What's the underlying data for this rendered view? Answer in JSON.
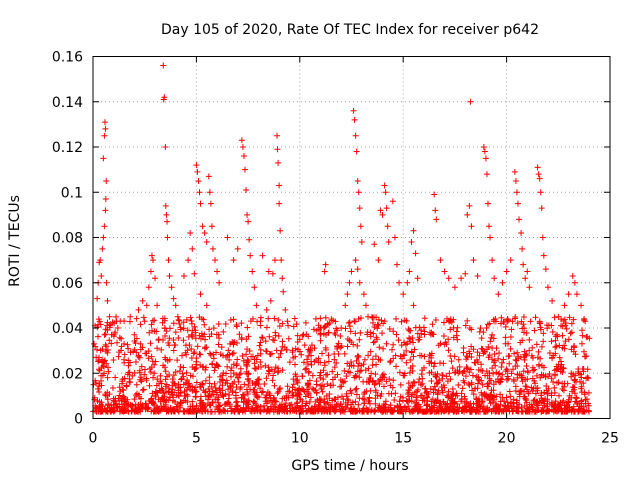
{
  "chart_data": {
    "type": "scatter",
    "title": "Day 105 of 2020, Rate Of TEC Index for receiver p642",
    "xlabel": "GPS time / hours",
    "ylabel": "ROTI / TECUs",
    "xlim": [
      0,
      25
    ],
    "ylim": [
      0,
      0.16
    ],
    "xticks": [
      0,
      5,
      10,
      15,
      20,
      25
    ],
    "yticks": [
      0,
      0.02,
      0.04,
      0.06,
      0.08,
      0.1,
      0.12,
      0.14,
      0.16
    ],
    "xtick_labels": [
      "0",
      "5",
      "10",
      "15",
      "20",
      "25"
    ],
    "ytick_labels": [
      "0",
      "0.02",
      "0.04",
      "0.06",
      "0.08",
      "0.1",
      "0.12",
      "0.14",
      "0.16"
    ],
    "grid": true,
    "marker": "+",
    "color": "#ff0000",
    "background_range": {
      "x": [
        0,
        24
      ],
      "y": [
        0.003,
        0.045
      ]
    },
    "series": [
      {
        "points": [
          [
            0.05,
            0.033
          ],
          [
            0.1,
            0.041
          ],
          [
            0.15,
            0.027
          ],
          [
            0.2,
            0.053
          ],
          [
            0.25,
            0.06
          ],
          [
            0.3,
            0.069
          ],
          [
            0.35,
            0.07
          ],
          [
            0.4,
            0.063
          ],
          [
            0.45,
            0.075
          ],
          [
            0.5,
            0.08
          ],
          [
            0.55,
            0.085
          ],
          [
            0.6,
            0.092
          ],
          [
            0.62,
            0.097
          ],
          [
            0.64,
            0.105
          ],
          [
            0.5,
            0.115
          ],
          [
            0.55,
            0.125
          ],
          [
            0.6,
            0.128
          ],
          [
            0.58,
            0.131
          ],
          [
            0.65,
            0.06
          ],
          [
            0.7,
            0.052
          ],
          [
            0.8,
            0.045
          ],
          [
            0.9,
            0.037
          ],
          [
            1.2,
            0.04
          ],
          [
            1.5,
            0.033
          ],
          [
            1.8,
            0.045
          ],
          [
            2.0,
            0.037
          ],
          [
            2.2,
            0.048
          ],
          [
            2.4,
            0.052
          ],
          [
            2.5,
            0.043
          ],
          [
            2.6,
            0.05
          ],
          [
            2.7,
            0.058
          ],
          [
            2.8,
            0.065
          ],
          [
            2.9,
            0.07
          ],
          [
            3.0,
            0.062
          ],
          [
            3.1,
            0.05
          ],
          [
            2.85,
            0.072
          ],
          [
            3.4,
            0.156
          ],
          [
            3.45,
            0.142
          ],
          [
            3.42,
            0.141
          ],
          [
            3.5,
            0.12
          ],
          [
            3.52,
            0.094
          ],
          [
            3.55,
            0.09
          ],
          [
            3.58,
            0.087
          ],
          [
            3.6,
            0.08
          ],
          [
            3.65,
            0.07
          ],
          [
            3.7,
            0.063
          ],
          [
            3.8,
            0.058
          ],
          [
            3.9,
            0.053
          ],
          [
            4.0,
            0.05
          ],
          [
            4.1,
            0.045
          ],
          [
            4.4,
            0.063
          ],
          [
            4.6,
            0.07
          ],
          [
            4.7,
            0.082
          ],
          [
            4.8,
            0.075
          ],
          [
            4.9,
            0.064
          ],
          [
            5.0,
            0.112
          ],
          [
            5.05,
            0.109
          ],
          [
            5.1,
            0.105
          ],
          [
            5.15,
            0.1
          ],
          [
            5.2,
            0.095
          ],
          [
            5.3,
            0.085
          ],
          [
            5.4,
            0.082
          ],
          [
            5.5,
            0.078
          ],
          [
            5.6,
            0.107
          ],
          [
            5.65,
            0.1
          ],
          [
            5.7,
            0.095
          ],
          [
            5.75,
            0.085
          ],
          [
            5.8,
            0.075
          ],
          [
            5.9,
            0.07
          ],
          [
            6.0,
            0.065
          ],
          [
            6.1,
            0.06
          ],
          [
            5.5,
            0.05
          ],
          [
            5.2,
            0.055
          ],
          [
            6.5,
            0.08
          ],
          [
            6.8,
            0.07
          ],
          [
            7.0,
            0.075
          ],
          [
            7.2,
            0.123
          ],
          [
            7.25,
            0.12
          ],
          [
            7.3,
            0.116
          ],
          [
            7.35,
            0.11
          ],
          [
            7.4,
            0.101
          ],
          [
            7.45,
            0.09
          ],
          [
            7.5,
            0.087
          ],
          [
            7.55,
            0.079
          ],
          [
            7.6,
            0.072
          ],
          [
            7.7,
            0.065
          ],
          [
            7.8,
            0.058
          ],
          [
            7.9,
            0.05
          ],
          [
            8.2,
            0.072
          ],
          [
            8.5,
            0.065
          ],
          [
            8.7,
            0.064
          ],
          [
            8.8,
            0.07
          ],
          [
            8.9,
            0.125
          ],
          [
            8.92,
            0.119
          ],
          [
            8.95,
            0.113
          ],
          [
            9.0,
            0.103
          ],
          [
            9.0,
            0.095
          ],
          [
            9.05,
            0.083
          ],
          [
            9.1,
            0.07
          ],
          [
            9.15,
            0.062
          ],
          [
            9.2,
            0.056
          ],
          [
            9.3,
            0.048
          ],
          [
            9.4,
            0.043
          ],
          [
            8.6,
            0.052
          ],
          [
            8.4,
            0.048
          ],
          [
            10.0,
            0.035
          ],
          [
            10.5,
            0.03
          ],
          [
            11.0,
            0.04
          ],
          [
            11.2,
            0.065
          ],
          [
            11.25,
            0.068
          ],
          [
            11.4,
            0.038
          ],
          [
            11.8,
            0.032
          ],
          [
            12.0,
            0.04
          ],
          [
            12.2,
            0.05
          ],
          [
            12.3,
            0.055
          ],
          [
            12.4,
            0.06
          ],
          [
            12.5,
            0.065
          ],
          [
            12.6,
            0.136
          ],
          [
            12.65,
            0.132
          ],
          [
            12.7,
            0.125
          ],
          [
            12.75,
            0.118
          ],
          [
            12.8,
            0.105
          ],
          [
            12.85,
            0.1
          ],
          [
            12.9,
            0.093
          ],
          [
            12.95,
            0.085
          ],
          [
            13.0,
            0.078
          ],
          [
            12.7,
            0.07
          ],
          [
            12.8,
            0.066
          ],
          [
            12.9,
            0.06
          ],
          [
            13.1,
            0.055
          ],
          [
            13.2,
            0.05
          ],
          [
            13.3,
            0.045
          ],
          [
            13.6,
            0.077
          ],
          [
            13.8,
            0.07
          ],
          [
            13.9,
            0.092
          ],
          [
            14.0,
            0.09
          ],
          [
            14.1,
            0.103
          ],
          [
            14.15,
            0.1
          ],
          [
            14.2,
            0.093
          ],
          [
            14.25,
            0.085
          ],
          [
            14.3,
            0.078
          ],
          [
            14.5,
            0.096
          ],
          [
            14.6,
            0.08
          ],
          [
            14.7,
            0.068
          ],
          [
            14.8,
            0.06
          ],
          [
            15.0,
            0.055
          ],
          [
            15.2,
            0.06
          ],
          [
            15.3,
            0.065
          ],
          [
            15.4,
            0.078
          ],
          [
            15.5,
            0.083
          ],
          [
            15.6,
            0.073
          ],
          [
            15.7,
            0.062
          ],
          [
            15.5,
            0.05
          ],
          [
            16.5,
            0.099
          ],
          [
            16.55,
            0.092
          ],
          [
            16.6,
            0.088
          ],
          [
            16.8,
            0.07
          ],
          [
            17.0,
            0.065
          ],
          [
            17.2,
            0.062
          ],
          [
            17.5,
            0.058
          ],
          [
            17.8,
            0.062
          ],
          [
            18.0,
            0.064
          ],
          [
            18.1,
            0.09
          ],
          [
            18.2,
            0.094
          ],
          [
            18.25,
            0.14
          ],
          [
            18.3,
            0.085
          ],
          [
            18.4,
            0.07
          ],
          [
            18.6,
            0.063
          ],
          [
            18.9,
            0.12
          ],
          [
            18.95,
            0.118
          ],
          [
            19.0,
            0.115
          ],
          [
            19.05,
            0.108
          ],
          [
            19.1,
            0.095
          ],
          [
            19.15,
            0.085
          ],
          [
            19.2,
            0.08
          ],
          [
            19.3,
            0.07
          ],
          [
            19.4,
            0.062
          ],
          [
            19.6,
            0.055
          ],
          [
            19.8,
            0.06
          ],
          [
            20.0,
            0.065
          ],
          [
            20.2,
            0.07
          ],
          [
            20.4,
            0.109
          ],
          [
            20.45,
            0.105
          ],
          [
            20.5,
            0.1
          ],
          [
            20.55,
            0.095
          ],
          [
            20.6,
            0.088
          ],
          [
            20.7,
            0.082
          ],
          [
            20.75,
            0.075
          ],
          [
            20.8,
            0.068
          ],
          [
            20.9,
            0.062
          ],
          [
            21.0,
            0.065
          ],
          [
            21.1,
            0.058
          ],
          [
            21.5,
            0.111
          ],
          [
            21.55,
            0.108
          ],
          [
            21.6,
            0.106
          ],
          [
            21.65,
            0.1
          ],
          [
            21.7,
            0.093
          ],
          [
            21.75,
            0.08
          ],
          [
            21.8,
            0.072
          ],
          [
            21.9,
            0.066
          ],
          [
            22.0,
            0.058
          ],
          [
            22.2,
            0.052
          ],
          [
            22.5,
            0.045
          ],
          [
            22.8,
            0.05
          ],
          [
            23.0,
            0.055
          ],
          [
            23.2,
            0.063
          ],
          [
            23.3,
            0.06
          ],
          [
            23.4,
            0.055
          ],
          [
            23.6,
            0.05
          ],
          [
            23.8,
            0.043
          ],
          [
            23.9,
            0.036
          ]
        ]
      }
    ]
  }
}
